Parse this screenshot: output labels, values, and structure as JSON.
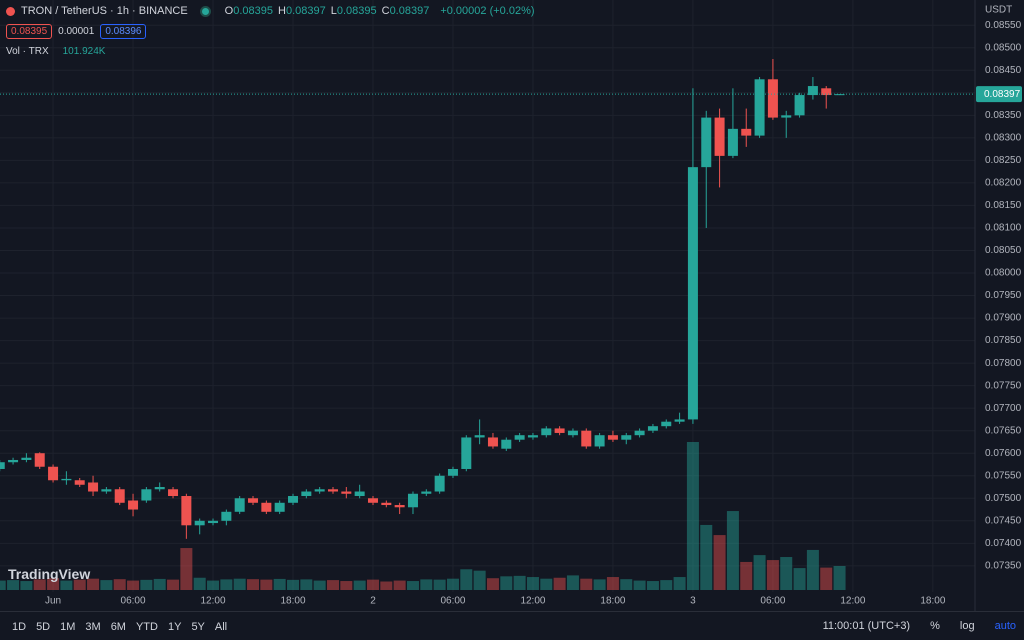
{
  "header": {
    "symbol": "TRON / TetherUS · 1h · BINANCE",
    "ohlc": [
      {
        "label": "O",
        "value": "0.08395"
      },
      {
        "label": "H",
        "value": "0.08397"
      },
      {
        "label": "L",
        "value": "0.08395"
      },
      {
        "label": "C",
        "value": "0.08397"
      }
    ],
    "change": "+0.00002 (+0.02%)",
    "sell": "0.08395",
    "spread": "0.00001",
    "buy": "0.08396",
    "vol_title": "Vol · TRX",
    "vol_value": "101.924K"
  },
  "logo": "TradingView",
  "toolbar": {
    "ranges": [
      "1D",
      "5D",
      "1M",
      "3M",
      "6M",
      "YTD",
      "1Y",
      "5Y",
      "All"
    ],
    "clock": "11:00:01 (UTC+3)",
    "percent": "%",
    "log": "log",
    "auto": "auto"
  },
  "chart_data": {
    "type": "candlestick",
    "currency": "USDT",
    "last_price": 0.08397,
    "up_color": "#26a69a",
    "down_color": "#ef5350",
    "grid": true,
    "xlim": [
      -3.98,
      69.16
    ],
    "ylim": [
      0.07252,
      0.08606
    ],
    "xticks": [
      {
        "value": 0,
        "label": "Jun"
      },
      {
        "value": 6,
        "label": "06:00"
      },
      {
        "value": 12,
        "label": "12:00"
      },
      {
        "value": 18,
        "label": "18:00"
      },
      {
        "value": 24,
        "label": "2"
      },
      {
        "value": 30,
        "label": "06:00"
      },
      {
        "value": 36,
        "label": "12:00"
      },
      {
        "value": 42,
        "label": "18:00"
      },
      {
        "value": 48,
        "label": "3"
      },
      {
        "value": 54,
        "label": "06:00"
      },
      {
        "value": 60,
        "label": "12:00"
      },
      {
        "value": 66,
        "label": "18:00"
      }
    ],
    "yticks": [
      {
        "value": 0.0855,
        "label": "0.08550"
      },
      {
        "value": 0.085,
        "label": "0.08500"
      },
      {
        "value": 0.0845,
        "label": "0.08450"
      },
      {
        "value": 0.084,
        "label": "0.08400"
      },
      {
        "value": 0.0835,
        "label": "0.08350"
      },
      {
        "value": 0.083,
        "label": "0.08300"
      },
      {
        "value": 0.0825,
        "label": "0.08250"
      },
      {
        "value": 0.082,
        "label": "0.08200"
      },
      {
        "value": 0.0815,
        "label": "0.08150"
      },
      {
        "value": 0.081,
        "label": "0.08100"
      },
      {
        "value": 0.0805,
        "label": "0.08050"
      },
      {
        "value": 0.08,
        "label": "0.08000"
      },
      {
        "value": 0.0795,
        "label": "0.07950"
      },
      {
        "value": 0.079,
        "label": "0.07900"
      },
      {
        "value": 0.0785,
        "label": "0.07850"
      },
      {
        "value": 0.078,
        "label": "0.07800"
      },
      {
        "value": 0.0775,
        "label": "0.07750"
      },
      {
        "value": 0.077,
        "label": "0.07700"
      },
      {
        "value": 0.0765,
        "label": "0.07650"
      },
      {
        "value": 0.076,
        "label": "0.07600"
      },
      {
        "value": 0.0755,
        "label": "0.07550"
      },
      {
        "value": 0.075,
        "label": "0.07500"
      },
      {
        "value": 0.0745,
        "label": "0.07450"
      },
      {
        "value": 0.074,
        "label": "0.07400"
      },
      {
        "value": 0.0735,
        "label": "0.07350"
      }
    ],
    "x": [
      -4,
      -3,
      -2,
      -1,
      0,
      1,
      2,
      3,
      4,
      5,
      6,
      7,
      8,
      9,
      10,
      11,
      12,
      13,
      14,
      15,
      16,
      17,
      18,
      19,
      20,
      21,
      22,
      23,
      24,
      25,
      26,
      27,
      28,
      29,
      30,
      31,
      32,
      33,
      34,
      35,
      36,
      37,
      38,
      39,
      40,
      41,
      42,
      43,
      44,
      45,
      46,
      47,
      48,
      49,
      50,
      51,
      52,
      53,
      54,
      55,
      56,
      57,
      58,
      59
    ],
    "open": [
      0.07565,
      0.0758,
      0.07585,
      0.076,
      0.0757,
      0.0754,
      0.0754,
      0.07535,
      0.07515,
      0.0752,
      0.07495,
      0.07495,
      0.0752,
      0.0752,
      0.07505,
      0.0744,
      0.07445,
      0.0745,
      0.0747,
      0.075,
      0.0749,
      0.0747,
      0.0749,
      0.07505,
      0.07515,
      0.0752,
      0.07515,
      0.07505,
      0.075,
      0.0749,
      0.07485,
      0.0748,
      0.0751,
      0.07515,
      0.0755,
      0.07565,
      0.07635,
      0.07635,
      0.0761,
      0.0763,
      0.07635,
      0.0764,
      0.07655,
      0.0764,
      0.0765,
      0.07615,
      0.0764,
      0.0763,
      0.0764,
      0.0765,
      0.0766,
      0.0767,
      0.07675,
      0.08235,
      0.08345,
      0.0826,
      0.0832,
      0.08305,
      0.0843,
      0.08345,
      0.0835,
      0.08395,
      0.0841,
      0.08395
    ],
    "high": [
      0.07585,
      0.0759,
      0.076,
      0.07602,
      0.07575,
      0.0756,
      0.07545,
      0.0755,
      0.07525,
      0.07525,
      0.0751,
      0.07525,
      0.07535,
      0.07525,
      0.0751,
      0.07455,
      0.07455,
      0.07475,
      0.07505,
      0.07505,
      0.07495,
      0.07495,
      0.0751,
      0.0752,
      0.07525,
      0.07525,
      0.07525,
      0.0753,
      0.07505,
      0.07495,
      0.0749,
      0.07515,
      0.0752,
      0.07555,
      0.0757,
      0.0764,
      0.07675,
      0.07645,
      0.07635,
      0.07645,
      0.07645,
      0.0766,
      0.0766,
      0.07655,
      0.07655,
      0.07645,
      0.0765,
      0.07645,
      0.07655,
      0.07665,
      0.07675,
      0.0769,
      0.0841,
      0.0836,
      0.08365,
      0.0841,
      0.08365,
      0.08435,
      0.08475,
      0.0836,
      0.084,
      0.08435,
      0.08415,
      0.08397
    ],
    "low": [
      0.0756,
      0.07575,
      0.0758,
      0.07565,
      0.07535,
      0.0753,
      0.07525,
      0.07505,
      0.0751,
      0.07485,
      0.0746,
      0.0749,
      0.07515,
      0.075,
      0.0741,
      0.0742,
      0.0744,
      0.0744,
      0.07465,
      0.07485,
      0.07465,
      0.07465,
      0.07485,
      0.075,
      0.0751,
      0.0751,
      0.075,
      0.075,
      0.07485,
      0.0748,
      0.07465,
      0.07465,
      0.07505,
      0.0751,
      0.07545,
      0.0756,
      0.0762,
      0.0761,
      0.07605,
      0.07625,
      0.0763,
      0.07635,
      0.0764,
      0.07635,
      0.0761,
      0.0761,
      0.07625,
      0.0762,
      0.07635,
      0.07645,
      0.07655,
      0.07665,
      0.07665,
      0.081,
      0.0819,
      0.08255,
      0.0828,
      0.083,
      0.0834,
      0.083,
      0.08345,
      0.08385,
      0.08365,
      0.08395
    ],
    "close": [
      0.0758,
      0.07585,
      0.0759,
      0.0757,
      0.0754,
      0.07543,
      0.0753,
      0.07515,
      0.0752,
      0.0749,
      0.07475,
      0.0752,
      0.07525,
      0.07505,
      0.0744,
      0.0745,
      0.0745,
      0.0747,
      0.075,
      0.0749,
      0.0747,
      0.0749,
      0.07505,
      0.07515,
      0.0752,
      0.07515,
      0.0751,
      0.07515,
      0.0749,
      0.07485,
      0.0748,
      0.0751,
      0.07515,
      0.0755,
      0.07565,
      0.07635,
      0.0764,
      0.07615,
      0.0763,
      0.0764,
      0.0764,
      0.07655,
      0.07645,
      0.0765,
      0.07615,
      0.0764,
      0.0763,
      0.0764,
      0.0765,
      0.0766,
      0.0767,
      0.07675,
      0.08235,
      0.08345,
      0.0826,
      0.0832,
      0.08305,
      0.0843,
      0.08345,
      0.0835,
      0.08395,
      0.08415,
      0.08395,
      0.08397
    ],
    "volume": [
      40000,
      42000,
      38000,
      45000,
      50000,
      40000,
      44000,
      48000,
      42000,
      46000,
      40000,
      43000,
      47000,
      44000,
      178000,
      52000,
      40000,
      45000,
      48000,
      46000,
      44000,
      47000,
      43000,
      45000,
      40000,
      42000,
      38000,
      40000,
      44000,
      36000,
      40000,
      38000,
      45000,
      44000,
      48000,
      88000,
      82000,
      50000,
      58000,
      60000,
      55000,
      48000,
      52000,
      62000,
      48000,
      45000,
      55000,
      46000,
      40000,
      38000,
      42000,
      55000,
      628000,
      276000,
      233000,
      335000,
      119000,
      148000,
      127000,
      140000,
      93000,
      170000,
      95000,
      101924
    ]
  }
}
